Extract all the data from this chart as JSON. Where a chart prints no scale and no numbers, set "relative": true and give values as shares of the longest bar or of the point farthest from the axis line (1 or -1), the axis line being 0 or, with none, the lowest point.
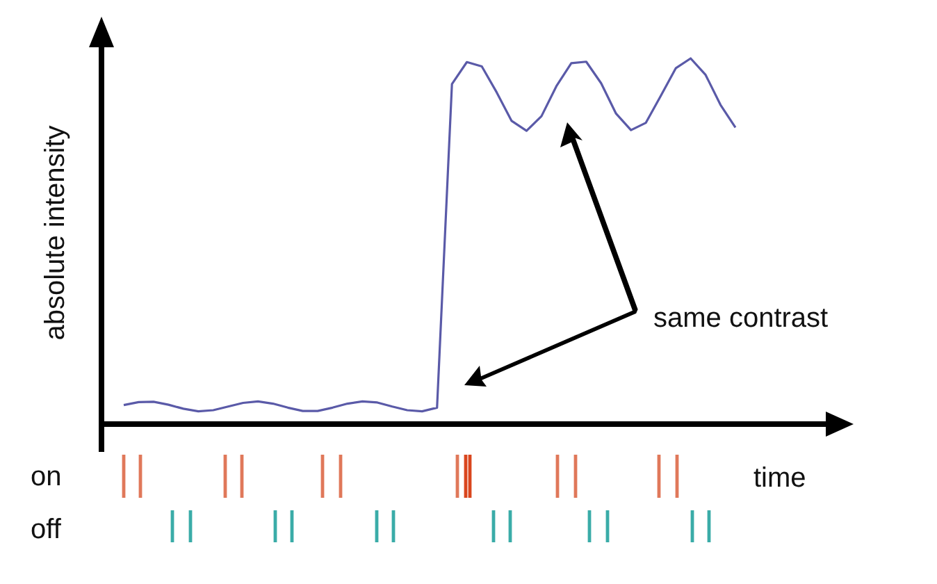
{
  "chart_data": {
    "type": "line",
    "relative": true,
    "xlabel": "time",
    "ylabel": "absolute intensity",
    "annotations": [
      "same contrast",
      "on",
      "off"
    ],
    "categories": [
      null,
      null,
      null,
      null,
      null,
      null,
      null,
      null,
      null,
      null,
      null,
      null,
      null,
      null,
      null,
      null,
      null,
      null,
      null,
      null,
      null,
      null,
      null,
      null,
      null,
      null,
      null,
      null,
      null,
      null,
      null,
      null,
      null,
      null,
      null,
      null,
      null,
      null,
      null,
      null,
      null,
      null
    ],
    "series": [
      {
        "color": "#5a5aa8",
        "values": [
          0.052,
          0.06,
          0.061,
          0.053,
          0.042,
          0.035,
          0.038,
          0.048,
          0.058,
          0.062,
          0.056,
          0.045,
          0.036,
          0.036,
          0.045,
          0.056,
          0.062,
          0.059,
          0.048,
          0.038,
          0.035,
          0.045,
          0.93,
          0.99,
          0.978,
          0.907,
          0.829,
          0.802,
          0.842,
          0.924,
          0.987,
          0.991,
          0.932,
          0.849,
          0.804,
          0.824,
          0.898,
          0.973,
          1,
          0.955,
          0.873,
          0.811
        ]
      }
    ]
  }
}
